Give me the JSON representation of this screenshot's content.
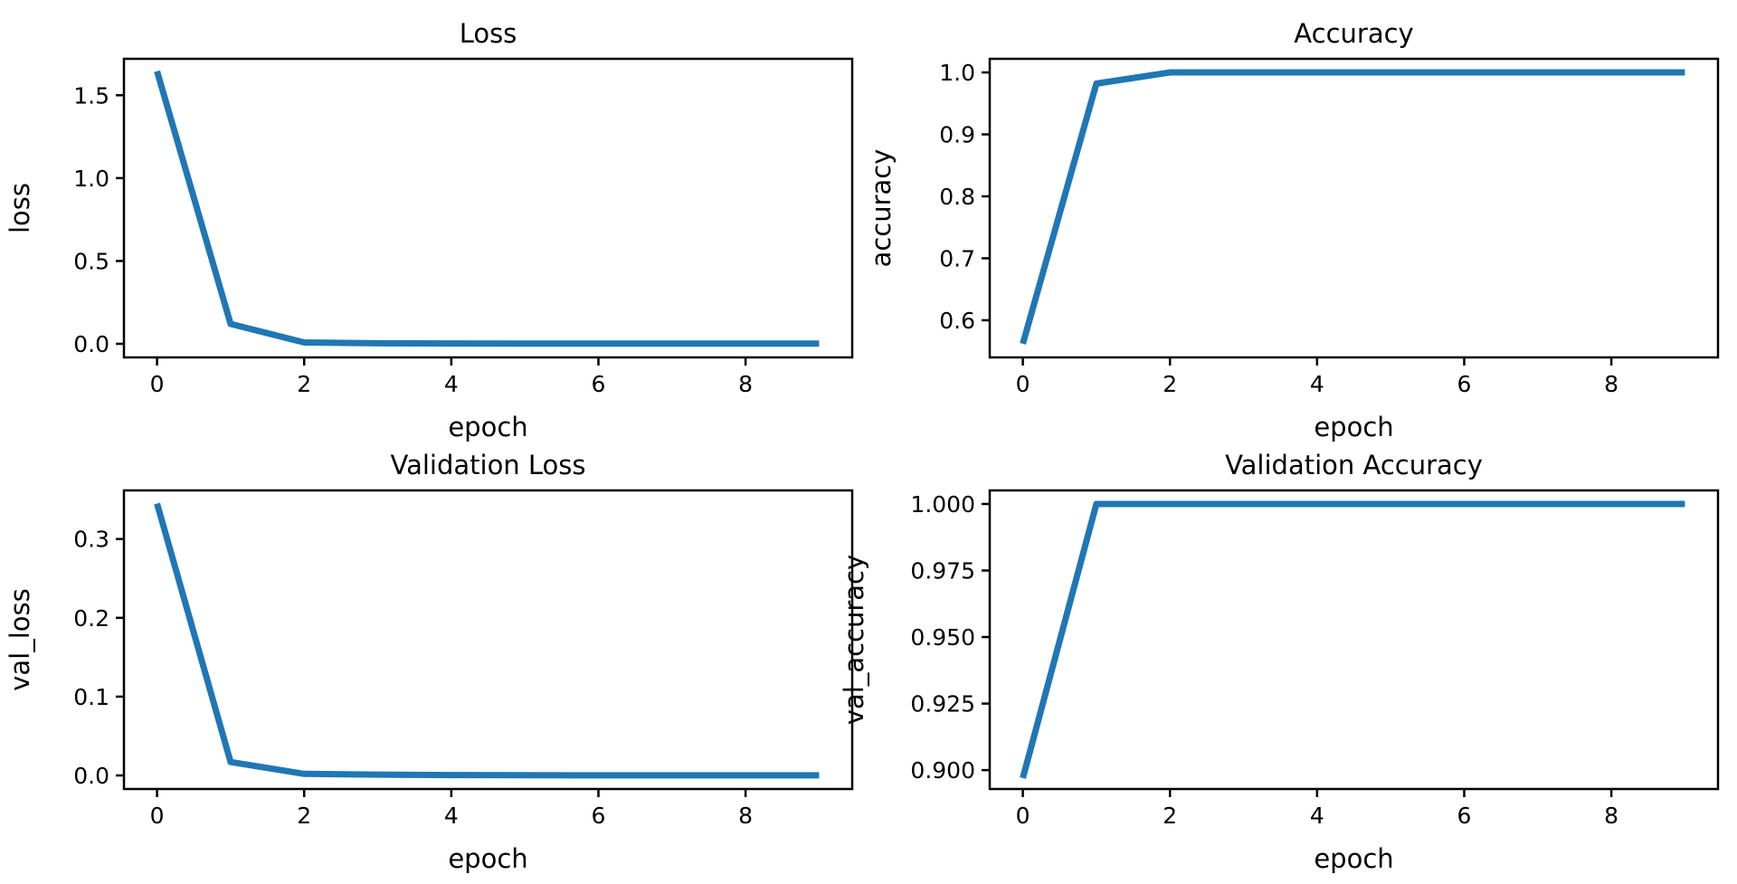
{
  "chart_data": [
    {
      "type": "line",
      "title": "Loss",
      "xlabel": "epoch",
      "ylabel": "loss",
      "x": [
        0,
        1,
        2,
        3,
        4,
        5,
        6,
        7,
        8,
        9
      ],
      "series": [
        {
          "values": [
            1.645,
            0.12,
            0.008,
            0.003,
            0.002,
            0.001,
            0.001,
            0.001,
            0.001,
            0.001
          ]
        }
      ],
      "xlim": [
        -0.45,
        9.45
      ],
      "ylim": [
        -0.082,
        1.72
      ],
      "xticks": [
        0,
        2,
        4,
        6,
        8
      ],
      "xtick_labels": [
        "0",
        "2",
        "4",
        "6",
        "8"
      ],
      "yticks": [
        0.0,
        0.5,
        1.0,
        1.5
      ],
      "ytick_labels": [
        "0.0",
        "0.5",
        "1.0",
        "1.5"
      ],
      "line_color": "#1f77b4",
      "grid": false
    },
    {
      "type": "line",
      "title": "Accuracy",
      "xlabel": "epoch",
      "ylabel": "accuracy",
      "x": [
        0,
        1,
        2,
        3,
        4,
        5,
        6,
        7,
        8,
        9
      ],
      "series": [
        {
          "values": [
            0.562,
            0.982,
            1.0,
            1.0,
            1.0,
            1.0,
            1.0,
            1.0,
            1.0,
            1.0
          ]
        }
      ],
      "xlim": [
        -0.45,
        9.45
      ],
      "ylim": [
        0.54,
        1.022
      ],
      "xticks": [
        0,
        2,
        4,
        6,
        8
      ],
      "xtick_labels": [
        "0",
        "2",
        "4",
        "6",
        "8"
      ],
      "yticks": [
        0.6,
        0.7,
        0.8,
        0.9,
        1.0
      ],
      "ytick_labels": [
        "0.6",
        "0.7",
        "0.8",
        "0.9",
        "1.0"
      ],
      "line_color": "#1f77b4",
      "grid": false
    },
    {
      "type": "line",
      "title": "Validation Loss",
      "xlabel": "epoch",
      "ylabel": "val_loss",
      "x": [
        0,
        1,
        2,
        3,
        4,
        5,
        6,
        7,
        8,
        9
      ],
      "series": [
        {
          "values": [
            0.345,
            0.017,
            0.002,
            0.001,
            0.0005,
            0.0003,
            0.0002,
            0.0002,
            0.0001,
            0.0001
          ]
        }
      ],
      "xlim": [
        -0.45,
        9.45
      ],
      "ylim": [
        -0.0172,
        0.3617
      ],
      "xticks": [
        0,
        2,
        4,
        6,
        8
      ],
      "xtick_labels": [
        "0",
        "2",
        "4",
        "6",
        "8"
      ],
      "yticks": [
        0.0,
        0.1,
        0.2,
        0.3
      ],
      "ytick_labels": [
        "0.0",
        "0.1",
        "0.2",
        "0.3"
      ],
      "line_color": "#1f77b4",
      "grid": false
    },
    {
      "type": "line",
      "title": "Validation Accuracy",
      "xlabel": "epoch",
      "ylabel": "val_accuracy",
      "x": [
        0,
        1,
        2,
        3,
        4,
        5,
        6,
        7,
        8,
        9
      ],
      "series": [
        {
          "values": [
            0.897,
            1.0,
            1.0,
            1.0,
            1.0,
            1.0,
            1.0,
            1.0,
            1.0,
            1.0
          ]
        }
      ],
      "xlim": [
        -0.45,
        9.45
      ],
      "ylim": [
        0.8929,
        1.0051
      ],
      "xticks": [
        0,
        2,
        4,
        6,
        8
      ],
      "xtick_labels": [
        "0",
        "2",
        "4",
        "6",
        "8"
      ],
      "yticks": [
        0.9,
        0.925,
        0.95,
        0.975,
        1.0
      ],
      "ytick_labels": [
        "0.900",
        "0.925",
        "0.950",
        "0.975",
        "1.000"
      ],
      "line_color": "#1f77b4",
      "grid": false
    }
  ]
}
